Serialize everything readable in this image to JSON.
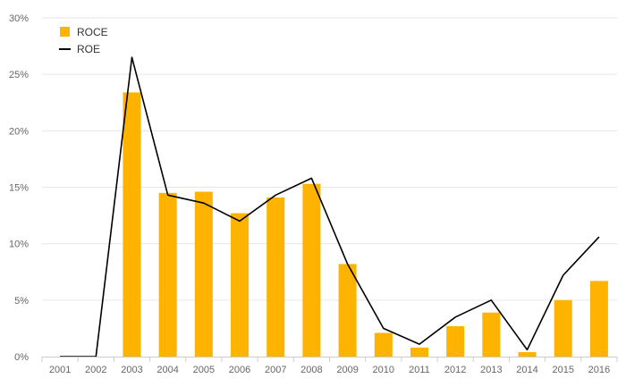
{
  "chart_data": {
    "type": "bar",
    "categories": [
      "2001",
      "2002",
      "2003",
      "2004",
      "2005",
      "2006",
      "2007",
      "2008",
      "2009",
      "2010",
      "2011",
      "2012",
      "2013",
      "2014",
      "2015",
      "2016"
    ],
    "series": [
      {
        "name": "ROCE",
        "kind": "bar",
        "color": "#FDB300",
        "values": [
          0,
          0,
          23.4,
          14.5,
          14.6,
          12.7,
          14.1,
          15.3,
          8.2,
          2.1,
          0.8,
          2.7,
          3.9,
          0.4,
          5.0,
          6.7
        ]
      },
      {
        "name": "ROE",
        "kind": "line",
        "color": "#000000",
        "values": [
          0,
          0,
          26.5,
          14.3,
          13.6,
          12.0,
          14.3,
          15.8,
          8.2,
          2.5,
          1.1,
          3.5,
          5.0,
          0.6,
          7.2,
          10.6
        ]
      }
    ],
    "yticks": [
      "0%",
      "5%",
      "10%",
      "15%",
      "20%",
      "25%",
      "30%"
    ],
    "ylim": [
      0,
      30
    ],
    "grid": true,
    "legend_position": "top-left"
  }
}
